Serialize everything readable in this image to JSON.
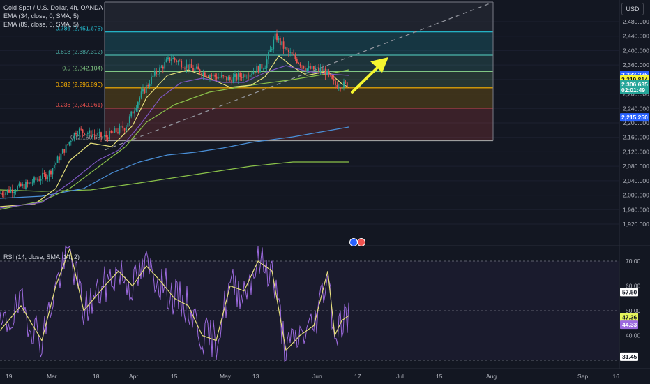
{
  "header": {
    "symbol": "Gold Spot / U.S. Dollar, 4h, OANDA",
    "ema1": "EMA (34, close, 0, SMA, 5)",
    "ema2": "EMA (89, close, 0, SMA, 5)",
    "currency": "USD"
  },
  "rsi_header": "RSI (14, close, SMA, 14, 2)",
  "colors": {
    "background": "#131722",
    "up": "#26a69a",
    "down": "#ef5350",
    "ema34": "#e6e07a",
    "ema89": "#7e57c2",
    "sma200": "#4a90d9",
    "long_ma": "#8bc34a",
    "rsi": "#9c6ade",
    "rsi_ma": "#e6e07a",
    "arrow": "#f5f52f"
  },
  "chart_data": {
    "type": "candlestick",
    "price_axis": {
      "ticks": [
        "2,480.000",
        "2,440.000",
        "2,400.000",
        "2,360.000",
        "2,320.000",
        "2,280.000",
        "2,240.000",
        "2,200.000",
        "2,160.000",
        "2,120.000",
        "2,080.000",
        "2,040.000",
        "2,000.000",
        "1,960.000",
        "1,920.000"
      ],
      "range": [
        1900,
        2510
      ]
    },
    "time_axis": {
      "ticks": [
        "19",
        "Mar",
        "18",
        "Apr",
        "15",
        "May",
        "13",
        "Jun",
        "17",
        "Jul",
        "15",
        "Aug",
        "Sep",
        "16"
      ]
    },
    "fib_levels": [
      {
        "label": "0.786 (2,451.675)",
        "value": 2451.675,
        "color": "#26c6da"
      },
      {
        "label": "0.618 (2,387.312)",
        "value": 2387.312,
        "color": "#4db6ac"
      },
      {
        "label": "0.5 (2,342.104)",
        "value": 2342.104,
        "color": "#81c784"
      },
      {
        "label": "0.382 (2,296.896)",
        "value": 2296.896,
        "color": "#ffb300"
      },
      {
        "label": "0.236 (2,240.961)",
        "value": 2240.961,
        "color": "#ef5350"
      },
      {
        "label": "0 (2,150.65)",
        "value": 2150.65,
        "color": "#9e9e9e"
      }
    ],
    "fib_top_value": 2510,
    "price_tags": [
      {
        "text": "2,333.236",
        "value": 2333.236,
        "bg": "#2962ff",
        "fg": "#ffffff"
      },
      {
        "text": "2,319.814",
        "value": 2319.814,
        "bg": "#f5f52f",
        "fg": "#131722"
      },
      {
        "text": "2,306.635",
        "value": 2306.635,
        "bg": "#26a69a",
        "fg": "#ffffff"
      },
      {
        "text": "02:01:49",
        "value": 2291,
        "bg": "#26a69a",
        "fg": "#ffffff"
      },
      {
        "text": "2,215.250",
        "value": 2215.25,
        "bg": "#2962ff",
        "fg": "#ffffff"
      }
    ],
    "rsi": {
      "levels": [
        70,
        50,
        30
      ],
      "ticks": [
        "70.00",
        "60.00",
        "50.00",
        "40.00"
      ],
      "tags": [
        {
          "text": "57.50",
          "value": 57.5,
          "bg": "#ffffff",
          "fg": "#131722"
        },
        {
          "text": "47.36",
          "value": 47.36,
          "bg": "#e6f55c",
          "fg": "#131722"
        },
        {
          "text": "44.33",
          "value": 44.33,
          "bg": "#9c6ade",
          "fg": "#ffffff"
        },
        {
          "text": "31.45",
          "value": 31.45,
          "bg": "#ffffff",
          "fg": "#131722"
        }
      ],
      "range": [
        28,
        78
      ]
    }
  }
}
